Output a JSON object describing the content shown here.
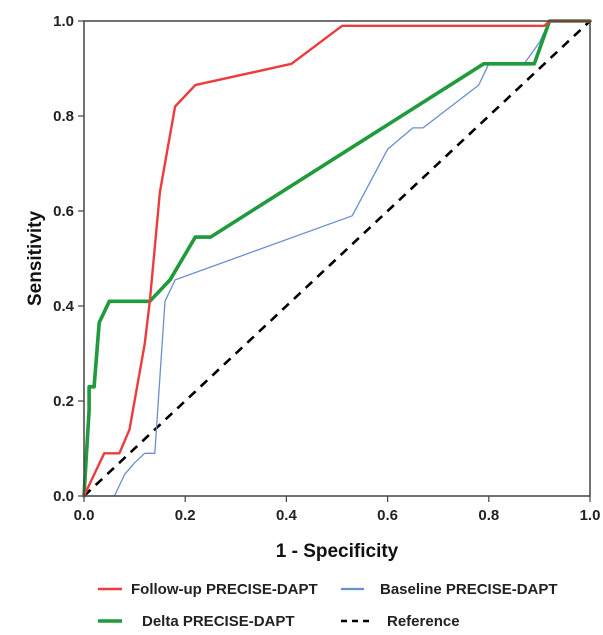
{
  "chart_data": {
    "type": "line",
    "title": "",
    "xlabel": "1 - Specificity",
    "ylabel": "Sensitivity",
    "xlim": [
      0,
      1
    ],
    "ylim": [
      0,
      1
    ],
    "xticks": [
      "0.0",
      "0.2",
      "0.4",
      "0.6",
      "0.8",
      "1.0"
    ],
    "yticks": [
      "0.0",
      "0.2",
      "0.4",
      "0.6",
      "0.8",
      "1.0"
    ],
    "grid": false,
    "legend_position": "bottom",
    "series": [
      {
        "name": "Follow-up PRECISE-DAPT",
        "color": "#ee3b3b",
        "style": "solid",
        "points": [
          [
            0.0,
            0.0
          ],
          [
            0.02,
            0.045
          ],
          [
            0.04,
            0.09
          ],
          [
            0.07,
            0.09
          ],
          [
            0.09,
            0.14
          ],
          [
            0.12,
            0.32
          ],
          [
            0.13,
            0.41
          ],
          [
            0.15,
            0.64
          ],
          [
            0.18,
            0.82
          ],
          [
            0.22,
            0.865
          ],
          [
            0.41,
            0.91
          ],
          [
            0.51,
            0.99
          ],
          [
            0.91,
            0.99
          ],
          [
            0.92,
            1.0
          ],
          [
            1.0,
            1.0
          ]
        ]
      },
      {
        "name": "Baseline PRECISE-DAPT",
        "color": "#6a8fd0",
        "style": "solid",
        "points": [
          [
            0.0,
            0.0
          ],
          [
            0.06,
            0.0
          ],
          [
            0.08,
            0.045
          ],
          [
            0.1,
            0.07
          ],
          [
            0.12,
            0.09
          ],
          [
            0.14,
            0.09
          ],
          [
            0.16,
            0.41
          ],
          [
            0.18,
            0.455
          ],
          [
            0.53,
            0.59
          ],
          [
            0.6,
            0.73
          ],
          [
            0.65,
            0.775
          ],
          [
            0.67,
            0.775
          ],
          [
            0.78,
            0.865
          ],
          [
            0.8,
            0.91
          ],
          [
            0.87,
            0.91
          ],
          [
            0.9,
            0.955
          ],
          [
            0.92,
            1.0
          ],
          [
            1.0,
            1.0
          ]
        ]
      },
      {
        "name": "Delta PRECISE-DAPT",
        "color": "#1f9a3c",
        "style": "solid",
        "points": [
          [
            0.0,
            0.0
          ],
          [
            0.005,
            0.09
          ],
          [
            0.01,
            0.18
          ],
          [
            0.01,
            0.23
          ],
          [
            0.02,
            0.23
          ],
          [
            0.03,
            0.365
          ],
          [
            0.05,
            0.41
          ],
          [
            0.13,
            0.41
          ],
          [
            0.17,
            0.455
          ],
          [
            0.22,
            0.545
          ],
          [
            0.25,
            0.545
          ],
          [
            0.79,
            0.91
          ],
          [
            0.89,
            0.91
          ],
          [
            0.92,
            1.0
          ],
          [
            1.0,
            1.0
          ]
        ]
      },
      {
        "name": "Reference",
        "color": "#000000",
        "style": "dashed",
        "points": [
          [
            0.0,
            0.0
          ],
          [
            1.0,
            1.0
          ]
        ]
      }
    ]
  }
}
